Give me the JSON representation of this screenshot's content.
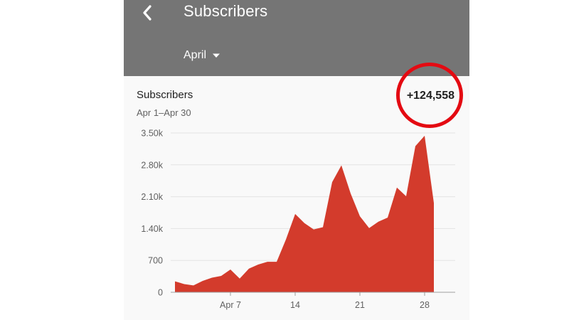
{
  "header": {
    "title": "Subscribers",
    "back_icon": "chevron-left-icon",
    "period": "April",
    "period_icon": "dropdown-arrow-icon"
  },
  "card": {
    "metric": "Subscribers",
    "date_range": "Apr 1–Apr 30",
    "total": "+124,558"
  },
  "colors": {
    "appbar": "#757575",
    "area_fill": "#d33b2c",
    "highlight": "#e40a12"
  },
  "chart_data": {
    "type": "area",
    "x": [
      1,
      2,
      3,
      4,
      5,
      6,
      7,
      8,
      9,
      10,
      11,
      12,
      13,
      14,
      15,
      16,
      17,
      18,
      19,
      20,
      21,
      22,
      23,
      24,
      25,
      26,
      27,
      28,
      29
    ],
    "values": [
      240,
      180,
      150,
      250,
      320,
      360,
      500,
      300,
      520,
      610,
      670,
      670,
      1160,
      1720,
      1520,
      1380,
      1430,
      2420,
      2790,
      2170,
      1670,
      1410,
      1550,
      1640,
      2300,
      2110,
      3210,
      3440,
      1960
    ],
    "x_tick_labels": [
      {
        "x": 7,
        "label": "Apr 7"
      },
      {
        "x": 14,
        "label": "14"
      },
      {
        "x": 21,
        "label": "21"
      },
      {
        "x": 28,
        "label": "28"
      }
    ],
    "y_ticks": [
      0,
      700,
      1400,
      2100,
      2800,
      3500
    ],
    "y_tick_labels": [
      "0",
      "700",
      "1.40k",
      "2.10k",
      "2.80k",
      "3.50k"
    ],
    "ylim": [
      0,
      3500
    ],
    "grid": true,
    "series": [
      {
        "values_ref": "values"
      }
    ]
  }
}
